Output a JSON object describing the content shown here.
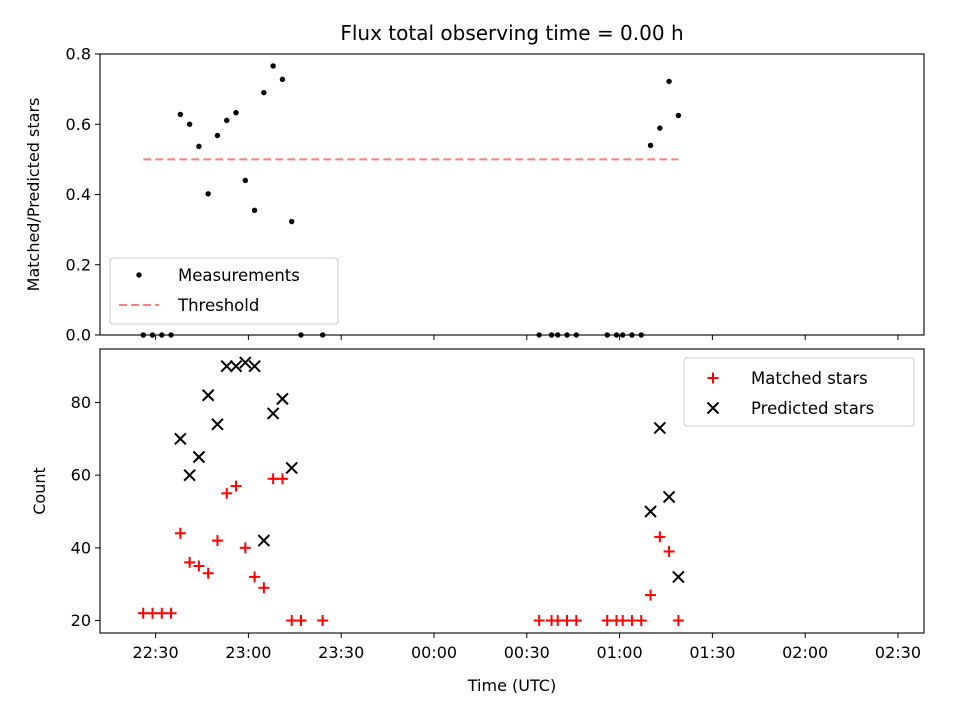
{
  "chart_data": [
    {
      "type": "scatter",
      "title": "Flux total observing time = 0.00 h",
      "ylabel": "Matched/Predicted stars",
      "xlabel": "",
      "ylim": [
        0,
        0.8
      ],
      "yticks": [
        "0.0",
        "0.2",
        "0.4",
        "0.6",
        "0.8"
      ],
      "grid": false,
      "legend": "lower-left",
      "series": [
        {
          "name": "Measurements",
          "marker": "dot",
          "color": "#000000",
          "points": [
            [
              "22:26",
              0.0
            ],
            [
              "22:29",
              0.0
            ],
            [
              "22:32",
              0.0
            ],
            [
              "22:35",
              0.0
            ],
            [
              "22:38",
              0.628
            ],
            [
              "22:41",
              0.6
            ],
            [
              "22:44",
              0.537
            ],
            [
              "22:47",
              0.402
            ],
            [
              "22:50",
              0.568
            ],
            [
              "22:53",
              0.611
            ],
            [
              "22:56",
              0.633
            ],
            [
              "22:59",
              0.44
            ],
            [
              "23:02",
              0.355
            ],
            [
              "23:05",
              0.69
            ],
            [
              "23:08",
              0.766
            ],
            [
              "23:11",
              0.728
            ],
            [
              "23:14",
              0.323
            ],
            [
              "23:17",
              0.0
            ],
            [
              "23:24",
              0.0
            ],
            [
              "00:34",
              0.0
            ],
            [
              "00:38",
              0.0
            ],
            [
              "00:40",
              0.0
            ],
            [
              "00:43",
              0.0
            ],
            [
              "00:46",
              0.0
            ],
            [
              "00:56",
              0.0
            ],
            [
              "00:59",
              0.0
            ],
            [
              "01:01",
              0.0
            ],
            [
              "01:04",
              0.0
            ],
            [
              "01:07",
              0.0
            ],
            [
              "01:10",
              0.54
            ],
            [
              "01:13",
              0.589
            ],
            [
              "01:16",
              0.722
            ],
            [
              "01:19",
              0.625
            ]
          ]
        },
        {
          "name": "Threshold",
          "style": "dashed",
          "color": "#ff7f7f",
          "x": [
            "22:26",
            "01:19"
          ],
          "y": [
            0.5,
            0.5
          ]
        }
      ]
    },
    {
      "type": "scatter",
      "xlabel": "Time (UTC)",
      "ylabel": "Count",
      "ylim": [
        16,
        95
      ],
      "yticks": [
        "20",
        "40",
        "60",
        "80"
      ],
      "xticks": [
        "22:30",
        "23:00",
        "23:30",
        "00:00",
        "00:30",
        "01:00",
        "01:30",
        "02:00",
        "02:30"
      ],
      "grid": false,
      "legend": "upper-right",
      "series": [
        {
          "name": "Matched stars",
          "marker": "plus",
          "color": "#ff0000",
          "points": [
            [
              "22:26",
              22
            ],
            [
              "22:29",
              22
            ],
            [
              "22:32",
              22
            ],
            [
              "22:35",
              22
            ],
            [
              "22:38",
              44
            ],
            [
              "22:41",
              36
            ],
            [
              "22:44",
              35
            ],
            [
              "22:47",
              33
            ],
            [
              "22:50",
              42
            ],
            [
              "22:53",
              55
            ],
            [
              "22:56",
              57
            ],
            [
              "22:59",
              40
            ],
            [
              "23:02",
              32
            ],
            [
              "23:05",
              29
            ],
            [
              "23:08",
              59
            ],
            [
              "23:11",
              59
            ],
            [
              "23:14",
              20
            ],
            [
              "23:17",
              20
            ],
            [
              "23:24",
              20
            ],
            [
              "00:34",
              20
            ],
            [
              "00:38",
              20
            ],
            [
              "00:40",
              20
            ],
            [
              "00:43",
              20
            ],
            [
              "00:46",
              20
            ],
            [
              "00:56",
              20
            ],
            [
              "00:59",
              20
            ],
            [
              "01:01",
              20
            ],
            [
              "01:04",
              20
            ],
            [
              "01:07",
              20
            ],
            [
              "01:10",
              27
            ],
            [
              "01:13",
              43
            ],
            [
              "01:16",
              39
            ],
            [
              "01:19",
              20
            ]
          ]
        },
        {
          "name": "Predicted stars",
          "marker": "x",
          "color": "#000000",
          "points": [
            [
              "22:38",
              70
            ],
            [
              "22:41",
              60
            ],
            [
              "22:44",
              65
            ],
            [
              "22:47",
              82
            ],
            [
              "22:50",
              74
            ],
            [
              "22:53",
              90
            ],
            [
              "22:56",
              90
            ],
            [
              "22:59",
              91
            ],
            [
              "23:02",
              90
            ],
            [
              "23:05",
              42
            ],
            [
              "23:08",
              77
            ],
            [
              "23:11",
              81
            ],
            [
              "23:14",
              62
            ],
            [
              "01:10",
              50
            ],
            [
              "01:13",
              73
            ],
            [
              "01:16",
              54
            ],
            [
              "01:19",
              32
            ]
          ]
        }
      ]
    }
  ]
}
